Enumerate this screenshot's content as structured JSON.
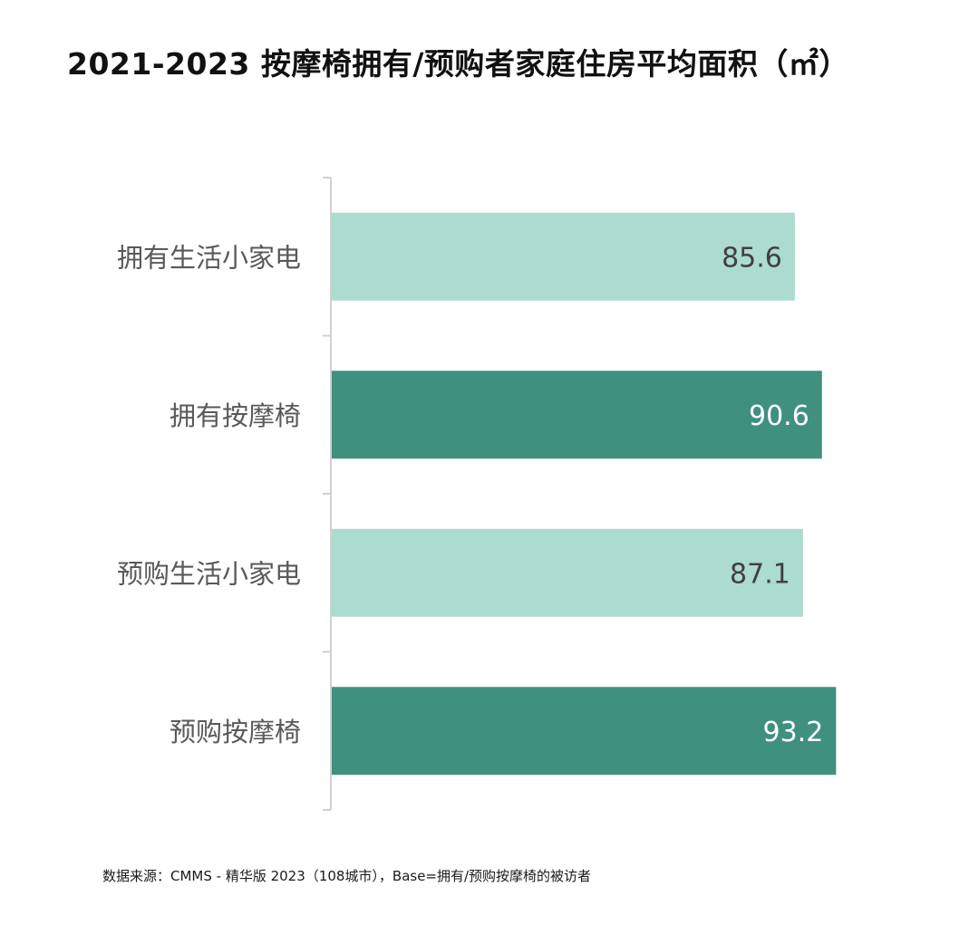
{
  "title": "2021-2023  按摩椅拥有/预购者家庭住房平均面积（㎡）",
  "source": "数据来源：CMMS - 精华版 2023（108城市），Base=拥有/预购按摩椅的被访者",
  "colors": {
    "light": "#acdbd0",
    "dark": "#40907e",
    "axis": "#d0d0d0",
    "label": "#595959",
    "value_dark_text": "#404040",
    "value_light_text": "#ffffff"
  },
  "chart_data": {
    "type": "bar",
    "orientation": "horizontal",
    "title": "2021-2023  按摩椅拥有/预购者家庭住房平均面积（㎡）",
    "categories": [
      "拥有生活小家电",
      "拥有按摩椅",
      "预购生活小家电",
      "预购按摩椅"
    ],
    "values": [
      85.6,
      90.6,
      87.1,
      93.2
    ],
    "value_labels": [
      "85.6",
      "90.6",
      "87.1",
      "93.2"
    ],
    "bar_colors": [
      "#acdbd0",
      "#40907e",
      "#acdbd0",
      "#40907e"
    ],
    "label_colors": [
      "#404040",
      "#ffffff",
      "#404040",
      "#ffffff"
    ],
    "xlabel": "",
    "ylabel": "",
    "grid": false,
    "legend": "none"
  }
}
